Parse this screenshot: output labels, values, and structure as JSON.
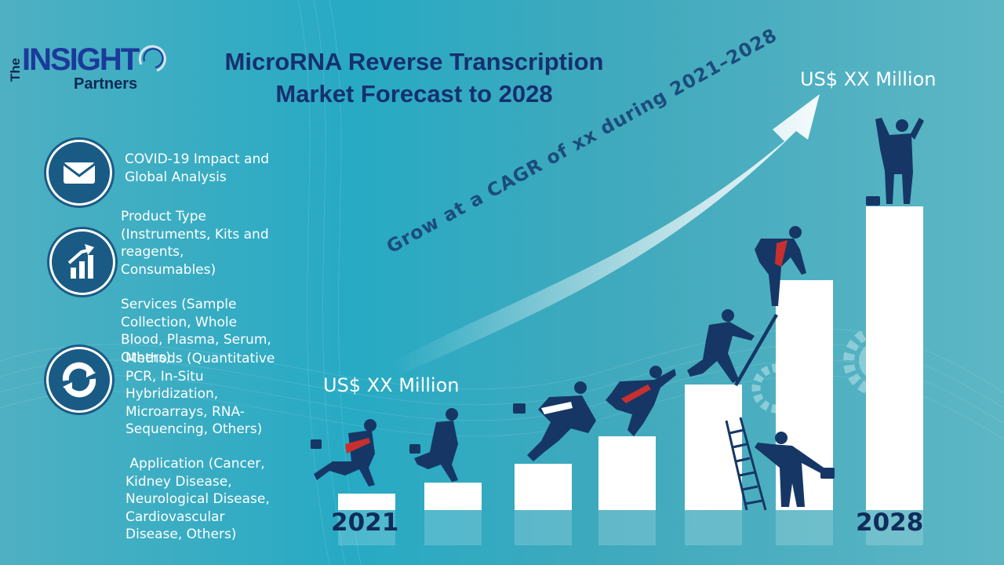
{
  "title": {
    "line1": "MicroRNA Reverse Transcription",
    "line2": "Market Forecast to 2028"
  },
  "logo": {
    "the": "The",
    "insight": "INSIGHT",
    "partners": "Partners"
  },
  "segments": {
    "covid": "COVID-19 Impact and\nGlobal Analysis",
    "product": "Product Type\n(Instruments, Kits and\nreagents,\nConsumables)",
    "services": "Services (Sample\nCollection, Whole\nBlood, Plasma, Serum,\nOthers)",
    "methods": "Methods (Quantitative\nPCR, In-Situ\nHybridization,\nMicroarrays, RNA-\nSequencing, Others)",
    "application": " Application (Cancer,\nKidney Disease,\nNeurological Disease,\nCardiovascular\nDisease, Others)"
  },
  "icons": [
    "envelope-icon",
    "growth-chart-icon",
    "refresh-cycle-icon"
  ],
  "market": {
    "start_value": "US$ XX Million",
    "end_value": "US$ XX Million",
    "start_year": "2021",
    "end_year": "2028",
    "cagr_text": "Grow at a CAGR of xx during 2021–2028"
  },
  "colors": {
    "background": "#27aac4",
    "title": "#15306e",
    "icon_fill": "#1a5b85",
    "year": "#0f2c5a",
    "figures": "#163766",
    "tie": "#c8302f"
  }
}
